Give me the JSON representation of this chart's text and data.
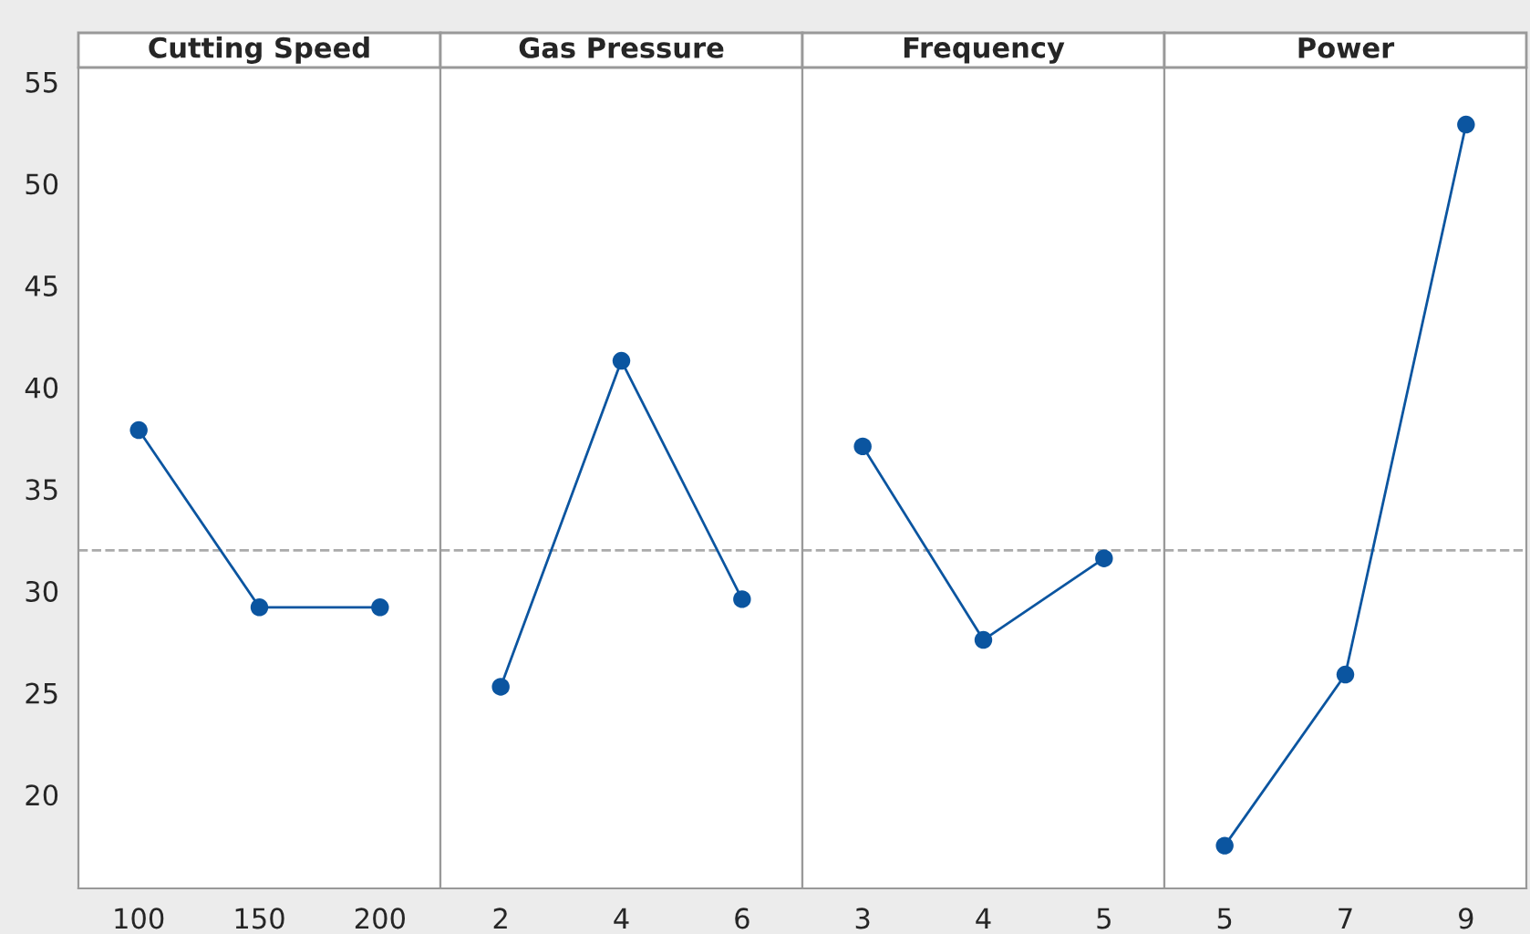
{
  "chart_data": [
    {
      "type": "line",
      "title": "Cutting Speed",
      "categories": [
        "100",
        "150",
        "200"
      ],
      "series": [
        {
          "color": "#0b55a0",
          "values": [
            37.9,
            29.2,
            29.2
          ]
        }
      ],
      "ylim": [
        15.4,
        55.7
      ],
      "yticks": [
        20,
        25,
        30,
        35,
        40,
        45,
        50,
        55
      ],
      "marker": "circle",
      "ref_lines": [
        {
          "axis": "y",
          "value": 32.0,
          "color": "#aaaaaa",
          "line_style": "dashed"
        }
      ]
    },
    {
      "type": "line",
      "title": "Gas Pressure",
      "categories": [
        "2",
        "4",
        "6"
      ],
      "series": [
        {
          "color": "#0b55a0",
          "values": [
            25.3,
            41.3,
            29.6
          ]
        }
      ],
      "ylim": [
        15.4,
        55.7
      ],
      "yticks": [
        20,
        25,
        30,
        35,
        40,
        45,
        50,
        55
      ],
      "tick_labels": "x",
      "marker": "circle",
      "ref_lines": [
        {
          "axis": "y",
          "value": 32.0,
          "color": "#aaaaaa",
          "line_style": "dashed"
        }
      ]
    },
    {
      "type": "line",
      "title": "Frequency",
      "categories": [
        "3",
        "4",
        "5"
      ],
      "series": [
        {
          "color": "#0b55a0",
          "values": [
            37.1,
            27.6,
            31.6
          ]
        }
      ],
      "ylim": [
        15.4,
        55.7
      ],
      "yticks": [
        20,
        25,
        30,
        35,
        40,
        45,
        50,
        55
      ],
      "tick_labels": "x",
      "marker": "circle",
      "ref_lines": [
        {
          "axis": "y",
          "value": 32.0,
          "color": "#aaaaaa",
          "line_style": "dashed"
        }
      ]
    },
    {
      "type": "line",
      "title": "Power",
      "categories": [
        "5",
        "7",
        "9"
      ],
      "series": [
        {
          "color": "#0b55a0",
          "values": [
            17.5,
            25.9,
            52.9
          ]
        }
      ],
      "ylim": [
        15.4,
        55.7
      ],
      "yticks": [
        20,
        25,
        30,
        35,
        40,
        45,
        50,
        55
      ],
      "tick_labels": "x",
      "marker": "circle",
      "ref_lines": [
        {
          "axis": "y",
          "value": 32.0,
          "color": "#aaaaaa",
          "line_style": "dashed"
        }
      ]
    }
  ]
}
